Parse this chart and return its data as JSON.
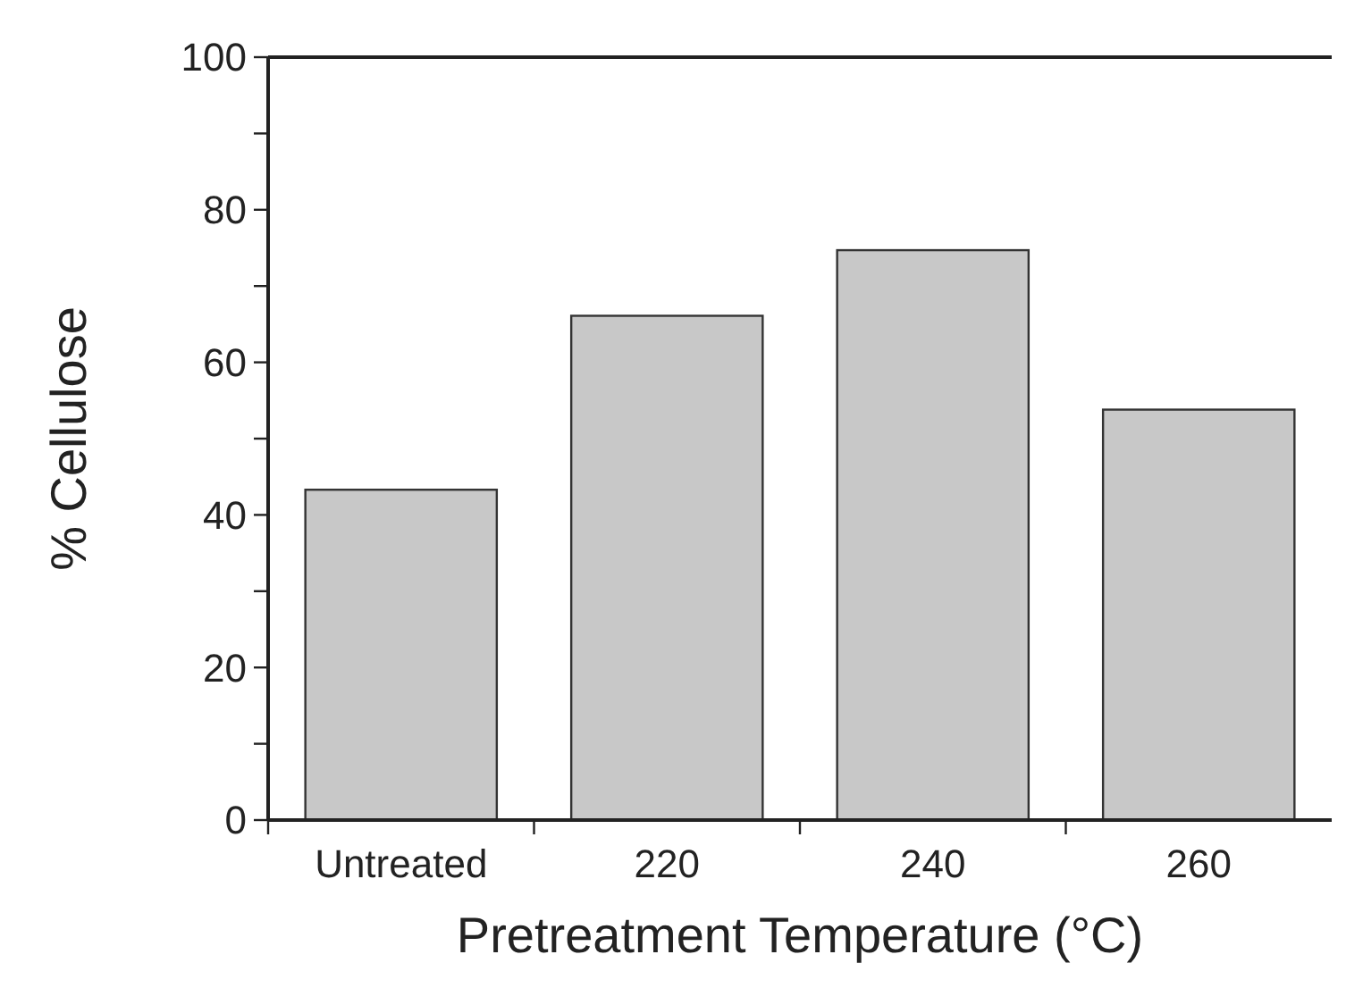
{
  "chart_data": {
    "type": "bar",
    "xlabel": "Pretreatment Temperature (°C)",
    "ylabel": "% Cellulose",
    "categories": [
      "Untreated",
      "220",
      "240",
      "260"
    ],
    "values": [
      43.3,
      66.1,
      74.7,
      53.8
    ],
    "color": "#c8c8c8",
    "ylim": [
      0,
      100
    ],
    "yticks": [
      0,
      {
        "value": 10,
        "label": null
      },
      20,
      {
        "value": 30,
        "label": null
      },
      40,
      {
        "value": 50,
        "label": null
      },
      60,
      {
        "value": 70,
        "label": null
      },
      80,
      {
        "value": 90,
        "label": null
      },
      100
    ],
    "grid": false
  }
}
